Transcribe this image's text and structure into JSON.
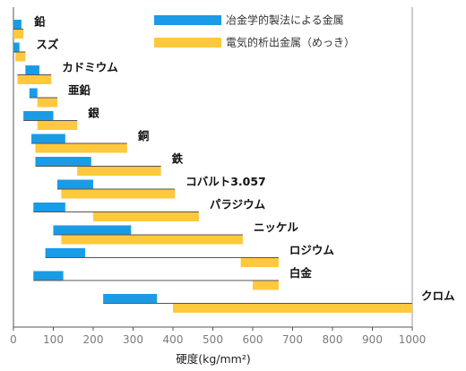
{
  "chart_data": {
    "type": "bar",
    "title": "",
    "xlabel": "硬度(kg/mm²)",
    "ylabel": "",
    "xlim": [
      0,
      1000
    ],
    "xticks": [
      "0",
      "100",
      "200",
      "300",
      "400",
      "500",
      "600",
      "700",
      "800",
      "900",
      "1000"
    ],
    "grid": false,
    "legend_position": "top-right",
    "series": [
      {
        "name": "冶金学的製法による金属",
        "color": "#1a9be8"
      },
      {
        "name": "電気的析出金属（めっき）",
        "color": "#ffc83d"
      }
    ],
    "categories": [
      {
        "label": "鉛",
        "metallurgical": [
          0,
          20
        ],
        "electro": [
          0,
          25
        ]
      },
      {
        "label": "スズ",
        "metallurgical": [
          0,
          15
        ],
        "electro": [
          5,
          30
        ]
      },
      {
        "label": "カドミウム",
        "metallurgical": [
          30,
          65
        ],
        "electro": [
          10,
          95
        ]
      },
      {
        "label": "亜鉛",
        "metallurgical": [
          40,
          60
        ],
        "electro": [
          60,
          110
        ]
      },
      {
        "label": "銀",
        "metallurgical": [
          25,
          100
        ],
        "electro": [
          60,
          160
        ]
      },
      {
        "label": "銅",
        "metallurgical": [
          45,
          130
        ],
        "electro": [
          55,
          285
        ]
      },
      {
        "label": "鉄",
        "metallurgical": [
          55,
          195
        ],
        "electro": [
          160,
          370
        ]
      },
      {
        "label": "コバルト3.057",
        "metallurgical": [
          110,
          200
        ],
        "electro": [
          120,
          405
        ]
      },
      {
        "label": "パラジウム",
        "metallurgical": [
          50,
          130
        ],
        "electro": [
          200,
          465
        ]
      },
      {
        "label": "ニッケル",
        "metallurgical": [
          100,
          295
        ],
        "electro": [
          120,
          575
        ]
      },
      {
        "label": "ロジウム",
        "metallurgical": [
          80,
          180
        ],
        "electro": [
          570,
          665
        ]
      },
      {
        "label": "白金",
        "metallurgical": [
          50,
          125
        ],
        "electro": [
          600,
          665
        ]
      },
      {
        "label": "クロム",
        "metallurgical": [
          225,
          360
        ],
        "electro": [
          400,
          1000
        ]
      }
    ]
  }
}
